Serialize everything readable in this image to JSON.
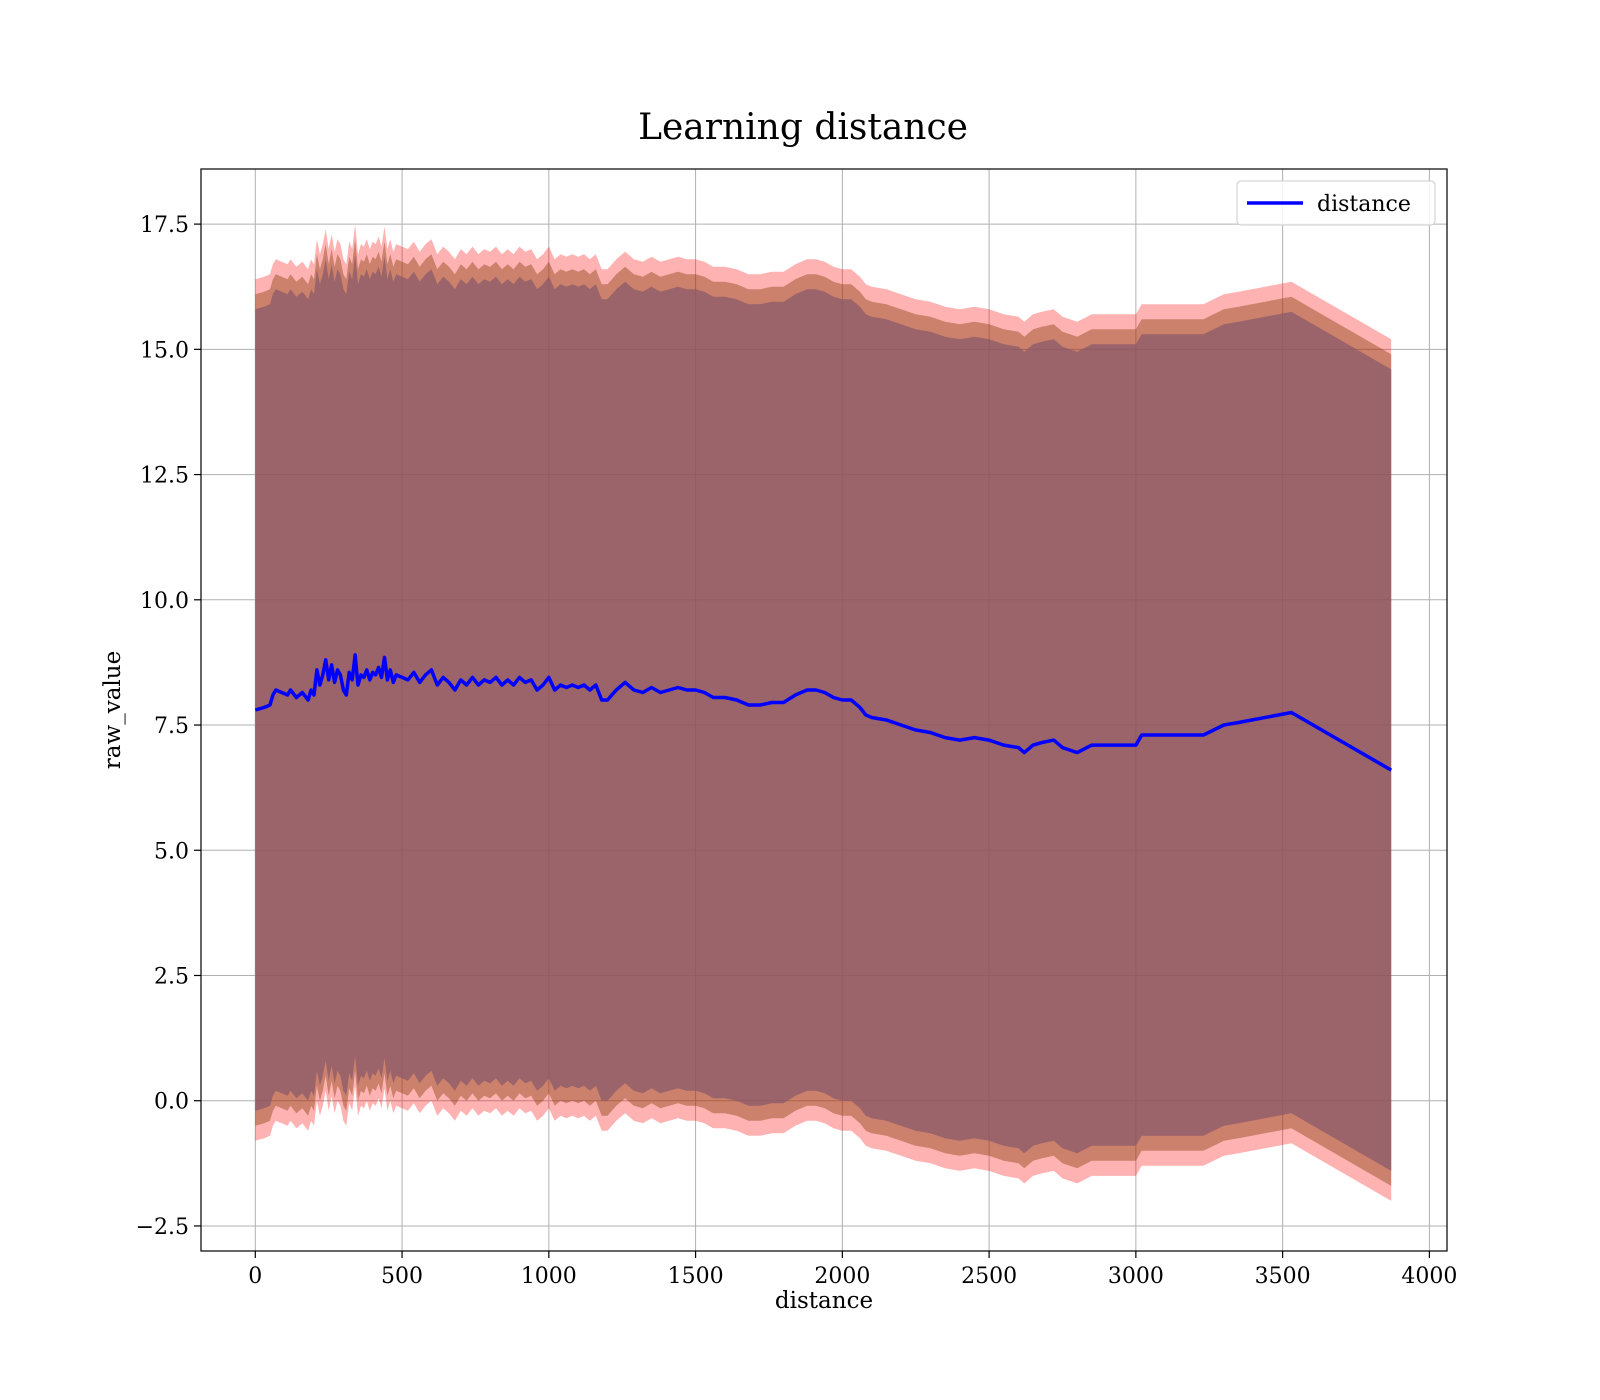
{
  "chart_data": {
    "type": "line",
    "title": "Learning distance",
    "xlabel": "distance",
    "ylabel": "raw_value",
    "xlim": [
      -185,
      4060
    ],
    "ylim": [
      -3.0,
      18.6
    ],
    "xticks": [
      0,
      500,
      1000,
      1500,
      2000,
      2500,
      3000,
      3500,
      4000
    ],
    "xtick_labels": [
      "0",
      "500",
      "1000",
      "1500",
      "2000",
      "2500",
      "3000",
      "3500",
      "4000"
    ],
    "yticks": [
      -2.5,
      0.0,
      2.5,
      5.0,
      7.5,
      10.0,
      12.5,
      15.0,
      17.5
    ],
    "ytick_labels": [
      "−2.5",
      "0.0",
      "2.5",
      "5.0",
      "7.5",
      "10.0",
      "12.5",
      "15.0",
      "17.5"
    ],
    "grid": true,
    "legend": {
      "position": "top-right",
      "entries": [
        "distance"
      ]
    },
    "colors": {
      "line": "#0000ff",
      "inner_band": "#8b4513",
      "outer_band": "#ff0000",
      "overlap_fill": "#a07078",
      "grid": "#b0b0b0"
    },
    "bands": [
      {
        "role": "outer",
        "half_width": 8.6,
        "color": "#ff0000",
        "opacity": 0.3
      },
      {
        "role": "middle",
        "half_width": 8.3,
        "color": "#8b4513",
        "opacity": 0.45
      },
      {
        "role": "inner",
        "half_width": 8.0,
        "color": "#8b5a6a",
        "opacity": 0.75
      }
    ],
    "series": [
      {
        "name": "distance",
        "x": [
          0,
          30,
          50,
          60,
          70,
          90,
          110,
          120,
          140,
          160,
          180,
          190,
          200,
          210,
          220,
          230,
          240,
          250,
          260,
          270,
          280,
          290,
          300,
          310,
          320,
          330,
          340,
          350,
          360,
          370,
          380,
          390,
          400,
          410,
          420,
          430,
          440,
          450,
          460,
          470,
          480,
          500,
          520,
          540,
          560,
          580,
          600,
          620,
          640,
          660,
          680,
          700,
          720,
          740,
          760,
          780,
          800,
          820,
          840,
          860,
          880,
          900,
          920,
          940,
          960,
          980,
          1000,
          1020,
          1040,
          1060,
          1080,
          1100,
          1120,
          1140,
          1160,
          1180,
          1200,
          1230,
          1260,
          1290,
          1320,
          1350,
          1380,
          1410,
          1440,
          1470,
          1500,
          1530,
          1560,
          1600,
          1640,
          1680,
          1720,
          1760,
          1800,
          1840,
          1880,
          1910,
          1940,
          1970,
          2000,
          2030,
          2060,
          2080,
          2100,
          2150,
          2200,
          2250,
          2300,
          2350,
          2400,
          2450,
          2500,
          2550,
          2600,
          2620,
          2650,
          2680,
          2720,
          2750,
          2800,
          2850,
          2900,
          3000,
          3020,
          3100,
          3230,
          3300,
          3350,
          3530,
          3870
        ],
        "values": [
          7.8,
          7.85,
          7.9,
          8.1,
          8.2,
          8.15,
          8.1,
          8.2,
          8.05,
          8.15,
          8.0,
          8.2,
          8.1,
          8.6,
          8.3,
          8.5,
          8.8,
          8.4,
          8.7,
          8.35,
          8.6,
          8.5,
          8.2,
          8.1,
          8.55,
          8.4,
          8.9,
          8.3,
          8.5,
          8.45,
          8.6,
          8.4,
          8.55,
          8.5,
          8.65,
          8.45,
          8.85,
          8.4,
          8.6,
          8.35,
          8.5,
          8.45,
          8.4,
          8.55,
          8.35,
          8.5,
          8.6,
          8.3,
          8.45,
          8.35,
          8.2,
          8.4,
          8.3,
          8.45,
          8.3,
          8.4,
          8.35,
          8.45,
          8.3,
          8.4,
          8.3,
          8.45,
          8.35,
          8.4,
          8.2,
          8.3,
          8.45,
          8.2,
          8.3,
          8.25,
          8.3,
          8.25,
          8.3,
          8.2,
          8.3,
          8.0,
          8.0,
          8.2,
          8.35,
          8.2,
          8.15,
          8.25,
          8.15,
          8.2,
          8.25,
          8.2,
          8.2,
          8.15,
          8.05,
          8.05,
          8.0,
          7.9,
          7.9,
          7.95,
          7.95,
          8.1,
          8.2,
          8.2,
          8.15,
          8.05,
          8.0,
          8.0,
          7.85,
          7.7,
          7.65,
          7.6,
          7.5,
          7.4,
          7.35,
          7.25,
          7.2,
          7.25,
          7.2,
          7.1,
          7.05,
          6.95,
          7.1,
          7.15,
          7.2,
          7.05,
          6.95,
          7.1,
          7.1,
          7.1,
          7.3,
          7.3,
          7.3,
          7.5,
          7.55,
          7.75,
          6.6
        ]
      }
    ]
  }
}
